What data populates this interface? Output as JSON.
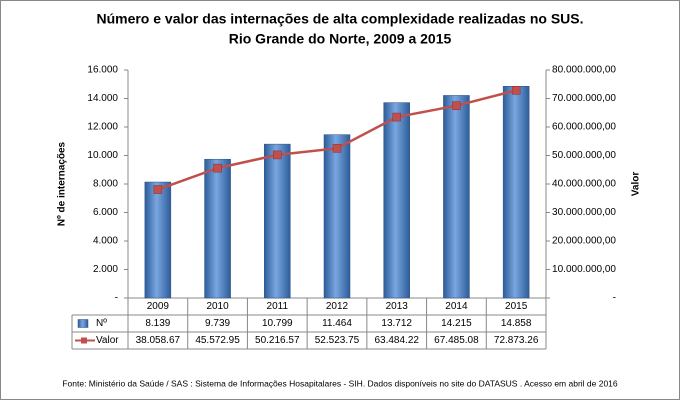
{
  "chart_data": {
    "type": "bar-line",
    "title": "Número e valor das internações de alta complexidade realizadas no SUS.",
    "subtitle": "Rio Grande do Norte, 2009 a 2015",
    "y_label": "Nº de internações",
    "y2_label": "Valor",
    "categories": [
      "2009",
      "2010",
      "2011",
      "2012",
      "2013",
      "2014",
      "2015"
    ],
    "series": [
      {
        "name": "Nº",
        "type": "bar",
        "color": "#4f81bd",
        "values": [
          8139,
          9739,
          10799,
          11464,
          13712,
          14215,
          14858
        ],
        "value_labels": [
          "8.139",
          "9.739",
          "10.799",
          "11.464",
          "13.712",
          "14.215",
          "14.858"
        ]
      },
      {
        "name": "Valor",
        "type": "line",
        "axis": "y2",
        "color": "#c0504d",
        "values": [
          38058670,
          45572950,
          50216570,
          52523750,
          63484220,
          67485080,
          72873260
        ],
        "value_labels": [
          "38.058.67",
          "45.572.95",
          "50.216.57",
          "52.523.75",
          "63.484.22",
          "67.485.08",
          "72.873.26"
        ]
      }
    ],
    "ylim": [
      0,
      16000
    ],
    "yticks": [
      {
        "value": 0,
        "label": "-"
      },
      {
        "value": 2000,
        "label": "2.000"
      },
      {
        "value": 4000,
        "label": "4.000"
      },
      {
        "value": 6000,
        "label": "6.000"
      },
      {
        "value": 8000,
        "label": "8.000"
      },
      {
        "value": 10000,
        "label": "10.000"
      },
      {
        "value": 12000,
        "label": "12.000"
      },
      {
        "value": 14000,
        "label": "14.000"
      },
      {
        "value": 16000,
        "label": "16.000"
      }
    ],
    "y2lim": [
      0,
      80000000
    ],
    "y2ticks": [
      {
        "value": 0,
        "label": "-"
      },
      {
        "value": 10000000,
        "label": "10.000.000,00"
      },
      {
        "value": 20000000,
        "label": "20.000.000,00"
      },
      {
        "value": 30000000,
        "label": "30.000.000,00"
      },
      {
        "value": 40000000,
        "label": "40.000.000,00"
      },
      {
        "value": 50000000,
        "label": "50.000.000,00"
      },
      {
        "value": 60000000,
        "label": "60.000.000,00"
      },
      {
        "value": 70000000,
        "label": "70.000.000,00"
      },
      {
        "value": 80000000,
        "label": "80.000.000,00"
      }
    ],
    "grid": false,
    "source": "Fonte:  Ministério da Saúde / SAS : Sistema de Informações Hosapitalares - SIH. Dados disponíveis no site do DATASUS . Acesso em abril de 2016"
  }
}
